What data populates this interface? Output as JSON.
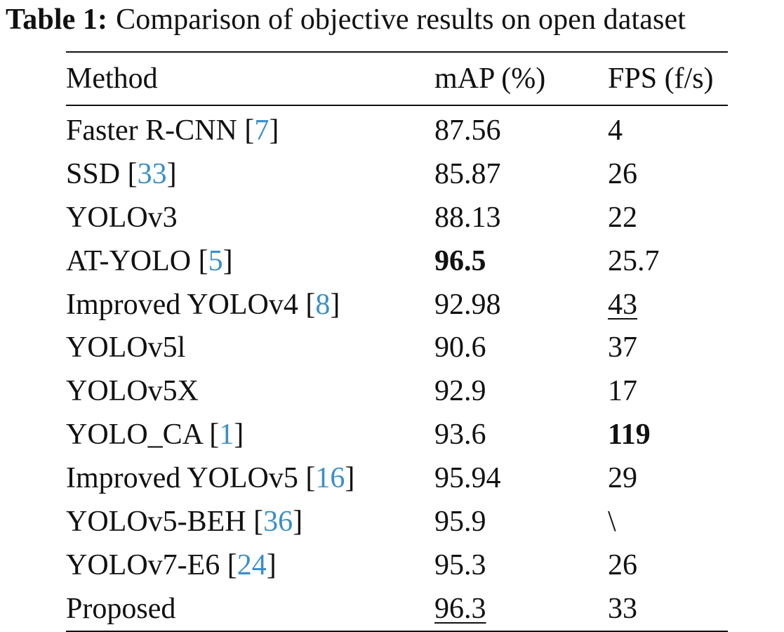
{
  "caption": {
    "label": "Table 1:",
    "text": "Comparison of objective results on open dataset"
  },
  "table": {
    "headers": [
      "Method",
      "mAP (%)",
      "FPS (f/s)"
    ],
    "rows": [
      {
        "method": "Faster R-CNN",
        "ref": "7",
        "map": "87.56",
        "fps": "4",
        "map_style": "",
        "fps_style": ""
      },
      {
        "method": "SSD",
        "ref": "33",
        "map": "85.87",
        "fps": "26",
        "map_style": "",
        "fps_style": ""
      },
      {
        "method": "YOLOv3",
        "ref": "",
        "map": "88.13",
        "fps": "22",
        "map_style": "",
        "fps_style": ""
      },
      {
        "method": "AT-YOLO",
        "ref": "5",
        "map": "96.5",
        "fps": "25.7",
        "map_style": "bold",
        "fps_style": ""
      },
      {
        "method": "Improved YOLOv4",
        "ref": "8",
        "map": "92.98",
        "fps": "43",
        "map_style": "",
        "fps_style": "underline"
      },
      {
        "method": "YOLOv5l",
        "ref": "",
        "map": "90.6",
        "fps": "37",
        "map_style": "",
        "fps_style": ""
      },
      {
        "method": "YOLOv5X",
        "ref": "",
        "map": "92.9",
        "fps": "17",
        "map_style": "",
        "fps_style": ""
      },
      {
        "method": "YOLO_CA",
        "ref": "1",
        "map": "93.6",
        "fps": "119",
        "map_style": "",
        "fps_style": "bold"
      },
      {
        "method": "Improved YOLOv5",
        "ref": "16",
        "map": "95.94",
        "fps": "29",
        "map_style": "",
        "fps_style": ""
      },
      {
        "method": "YOLOv5-BEH",
        "ref": "36",
        "map": "95.9",
        "fps": "\\",
        "map_style": "",
        "fps_style": ""
      },
      {
        "method": "YOLOv7-E6",
        "ref": "24",
        "map": "95.3",
        "fps": "26",
        "map_style": "",
        "fps_style": ""
      },
      {
        "method": "Proposed",
        "ref": "",
        "map": "96.3",
        "fps": "33",
        "map_style": "underline",
        "fps_style": ""
      }
    ]
  }
}
